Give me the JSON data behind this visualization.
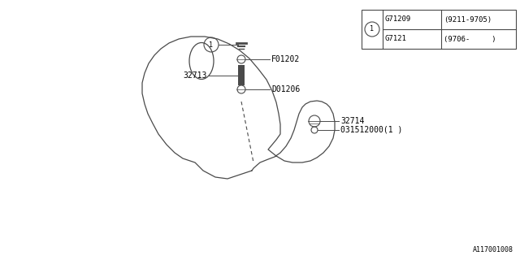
{
  "background_color": "#ffffff",
  "line_color": "#4a4a4a",
  "text_color": "#000000",
  "font_size": 7,
  "diagram_id": "A117001008",
  "legend_table": {
    "rows": [
      {
        "part": "G71209",
        "range": "(9211-9705)"
      },
      {
        "part": "G7121",
        "range": "(9706-     )"
      }
    ]
  }
}
